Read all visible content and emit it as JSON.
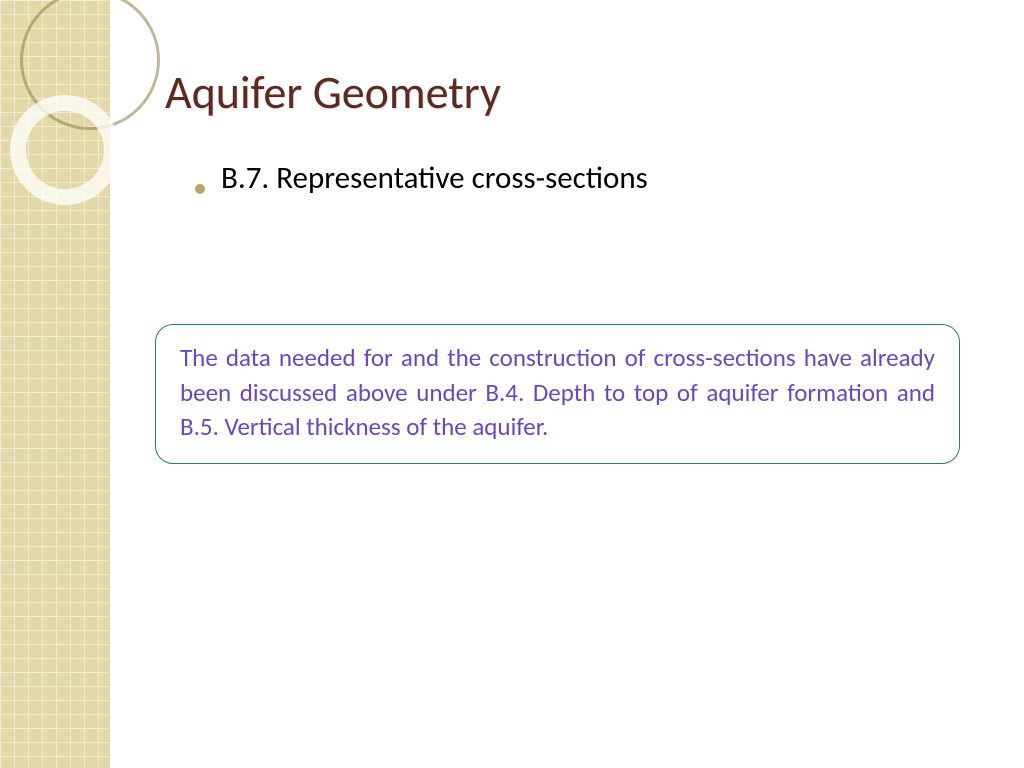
{
  "slide": {
    "title": "Aquifer Geometry",
    "bullet": {
      "number": "B.7.",
      "label_a": "Representative ",
      "label_b": "cross-sections"
    },
    "callout": "The data needed for and the construction of cross-sections have already been discussed above under B.4. Depth to top of aquifer formation and B.5. Vertical thickness of the aquifer."
  },
  "style": {
    "sidebar_bg": "#e3d9a8",
    "title_color": "#5e2a1f",
    "bullet_color": "#b8a96a",
    "callout_border": "#2c7a7a",
    "callout_text": "#6b46c1",
    "circle_border": "rgba(140,128,70,0.55)",
    "ring_color": "rgba(255,255,255,0.75)"
  }
}
